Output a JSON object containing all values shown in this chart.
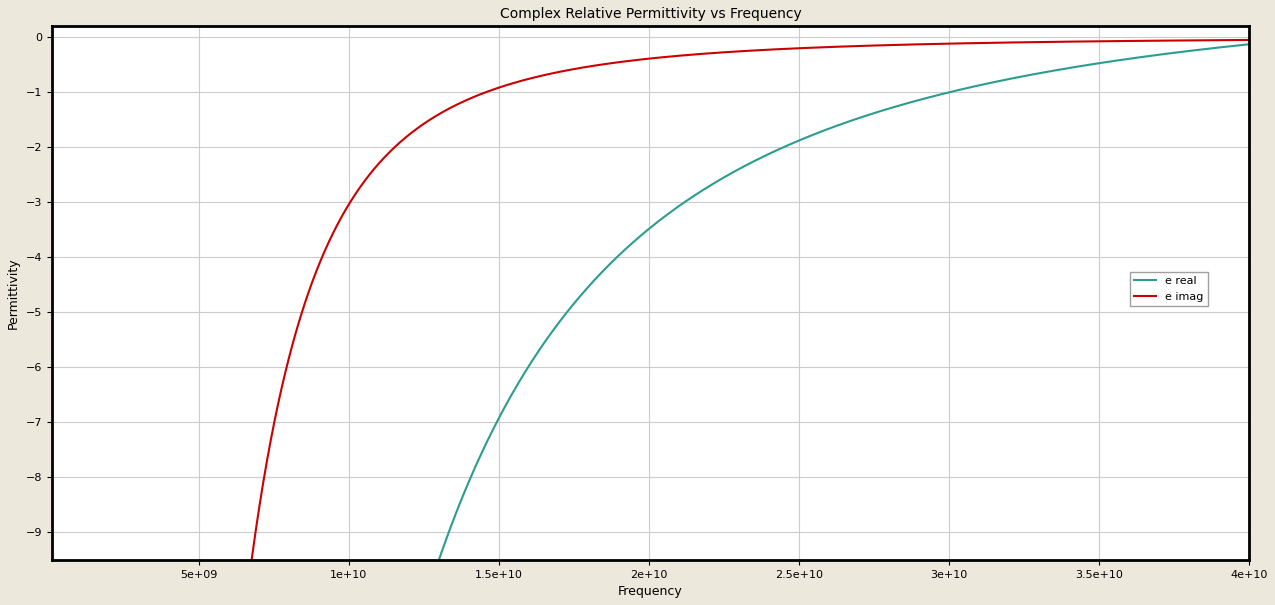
{
  "title": "Complex Relative Permittivity vs Frequency",
  "xlabel": "Frequency",
  "ylabel": "Permittivity",
  "freq_start": 100000000.0,
  "freq_end": 40000000000.0,
  "color_real": "#2a9d8f",
  "color_imag": "#cc0000",
  "label_real": "e real",
  "label_imag": "e imag",
  "ylim": [
    -9.5,
    0.2
  ],
  "xlim": [
    100000000.0,
    40000000000.0
  ],
  "background_color": "#ede8dc",
  "plot_bg_color": "#ffffff",
  "grid_color": "#cccccc",
  "line_width": 1.5,
  "title_fontsize": 10,
  "axis_fontsize": 9,
  "tick_fontsize": 8,
  "legend_fontsize": 8,
  "xticks": [
    5000000000.0,
    10000000000.0,
    15000000000.0,
    20000000000.0,
    25000000000.0,
    30000000000.0,
    35000000000.0,
    40000000000.0
  ],
  "yticks": [
    -9,
    -8,
    -7,
    -6,
    -5,
    -4,
    -3,
    -2,
    -1,
    0
  ]
}
